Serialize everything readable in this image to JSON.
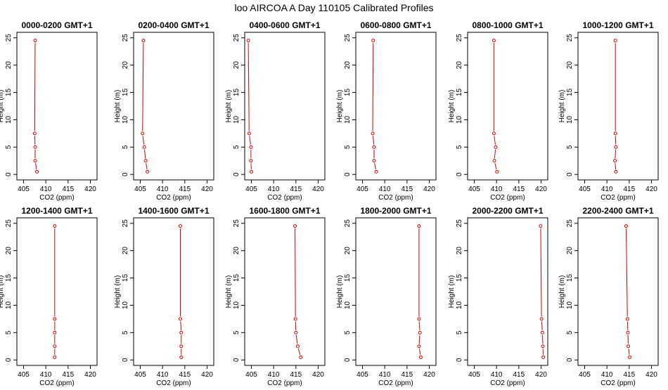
{
  "figure": {
    "title": "loo AIRCOA A  Day 110105  Calibrated Profiles"
  },
  "chart_data": [
    {
      "type": "line",
      "title": "0000-0200 GMT+1",
      "xlabel": "CO2 (ppm)",
      "ylabel": "Height (m)",
      "xlim": [
        403.5,
        421.5
      ],
      "ylim": [
        -1,
        26
      ],
      "xticks": [
        405,
        410,
        415,
        420
      ],
      "yticks": [
        0,
        5,
        10,
        15,
        20,
        25
      ],
      "color": "#d40000",
      "points": [
        {
          "x": 408.0,
          "y": 0.5
        },
        {
          "x": 407.6,
          "y": 2.5
        },
        {
          "x": 407.6,
          "y": 5.0
        },
        {
          "x": 407.5,
          "y": 7.5
        },
        {
          "x": 407.6,
          "y": 24.5
        }
      ]
    },
    {
      "type": "line",
      "title": "0200-0400 GMT+1",
      "xlabel": "CO2 (ppm)",
      "ylabel": "Height (m)",
      "xlim": [
        403.5,
        421.5
      ],
      "ylim": [
        -1,
        26
      ],
      "xticks": [
        405,
        410,
        415,
        420
      ],
      "yticks": [
        0,
        5,
        10,
        15,
        20,
        25
      ],
      "color": "#d40000",
      "points": [
        {
          "x": 406.6,
          "y": 0.5
        },
        {
          "x": 406.2,
          "y": 2.5
        },
        {
          "x": 405.9,
          "y": 5.0
        },
        {
          "x": 405.5,
          "y": 7.5
        },
        {
          "x": 405.7,
          "y": 24.5
        }
      ]
    },
    {
      "type": "line",
      "title": "0400-0600 GMT+1",
      "xlabel": "CO2 (ppm)",
      "ylabel": "Height (m)",
      "xlim": [
        403.5,
        421.5
      ],
      "ylim": [
        -1,
        26
      ],
      "xticks": [
        405,
        410,
        415,
        420
      ],
      "yticks": [
        0,
        5,
        10,
        15,
        20,
        25
      ],
      "color": "#d40000",
      "points": [
        {
          "x": 405.0,
          "y": 0.5
        },
        {
          "x": 404.9,
          "y": 2.5
        },
        {
          "x": 404.9,
          "y": 5.0
        },
        {
          "x": 404.5,
          "y": 7.5
        },
        {
          "x": 404.3,
          "y": 24.5
        }
      ]
    },
    {
      "type": "line",
      "title": "0600-0800 GMT+1",
      "xlabel": "CO2 (ppm)",
      "ylabel": "Height (m)",
      "xlim": [
        403.5,
        421.5
      ],
      "ylim": [
        -1,
        26
      ],
      "xticks": [
        405,
        410,
        415,
        420
      ],
      "yticks": [
        0,
        5,
        10,
        15,
        20,
        25
      ],
      "color": "#d40000",
      "points": [
        {
          "x": 408.1,
          "y": 0.5
        },
        {
          "x": 407.6,
          "y": 2.5
        },
        {
          "x": 407.6,
          "y": 5.0
        },
        {
          "x": 407.3,
          "y": 7.5
        },
        {
          "x": 407.4,
          "y": 24.5
        }
      ]
    },
    {
      "type": "line",
      "title": "0800-1000 GMT+1",
      "xlabel": "CO2 (ppm)",
      "ylabel": "Height (m)",
      "xlim": [
        403.5,
        421.5
      ],
      "ylim": [
        -1,
        26
      ],
      "xticks": [
        405,
        410,
        415,
        420
      ],
      "yticks": [
        0,
        5,
        10,
        15,
        20,
        25
      ],
      "color": "#d40000",
      "points": [
        {
          "x": 410.1,
          "y": 0.5
        },
        {
          "x": 409.5,
          "y": 2.5
        },
        {
          "x": 409.8,
          "y": 5.0
        },
        {
          "x": 409.4,
          "y": 7.5
        },
        {
          "x": 409.4,
          "y": 24.5
        }
      ]
    },
    {
      "type": "line",
      "title": "1000-1200 GMT+1",
      "xlabel": "CO2 (ppm)",
      "ylabel": "Height (m)",
      "xlim": [
        403.5,
        421.5
      ],
      "ylim": [
        -1,
        26
      ],
      "xticks": [
        405,
        410,
        415,
        420
      ],
      "yticks": [
        0,
        5,
        10,
        15,
        20,
        25
      ],
      "color": "#d40000",
      "points": [
        {
          "x": 412.0,
          "y": 0.5
        },
        {
          "x": 411.8,
          "y": 2.5
        },
        {
          "x": 412.0,
          "y": 5.0
        },
        {
          "x": 411.9,
          "y": 7.5
        },
        {
          "x": 411.9,
          "y": 24.5
        }
      ]
    },
    {
      "type": "line",
      "title": "1200-1400 GMT+1",
      "xlabel": "CO2 (ppm)",
      "ylabel": "Height (m)",
      "xlim": [
        403.5,
        421.5
      ],
      "ylim": [
        -1,
        26
      ],
      "xticks": [
        405,
        410,
        415,
        420
      ],
      "yticks": [
        0,
        5,
        10,
        15,
        20,
        25
      ],
      "color": "#d40000",
      "points": [
        {
          "x": 412.0,
          "y": 0.5
        },
        {
          "x": 412.0,
          "y": 2.5
        },
        {
          "x": 412.0,
          "y": 5.0
        },
        {
          "x": 412.0,
          "y": 7.5
        },
        {
          "x": 412.0,
          "y": 24.5
        }
      ]
    },
    {
      "type": "line",
      "title": "1400-1600 GMT+1",
      "xlabel": "CO2 (ppm)",
      "ylabel": "Height (m)",
      "xlim": [
        403.5,
        421.5
      ],
      "ylim": [
        -1,
        26
      ],
      "xticks": [
        405,
        410,
        415,
        420
      ],
      "yticks": [
        0,
        5,
        10,
        15,
        20,
        25
      ],
      "color": "#d40000",
      "points": [
        {
          "x": 414.2,
          "y": 0.5
        },
        {
          "x": 414.2,
          "y": 2.5
        },
        {
          "x": 414.2,
          "y": 5.0
        },
        {
          "x": 414.0,
          "y": 7.5
        },
        {
          "x": 414.0,
          "y": 24.5
        }
      ]
    },
    {
      "type": "line",
      "title": "1600-1800 GMT+1",
      "xlabel": "CO2 (ppm)",
      "ylabel": "Height (m)",
      "xlim": [
        403.5,
        421.5
      ],
      "ylim": [
        -1,
        26
      ],
      "xticks": [
        405,
        410,
        415,
        420
      ],
      "yticks": [
        0,
        5,
        10,
        15,
        20,
        25
      ],
      "color": "#d40000",
      "points": [
        {
          "x": 416.1,
          "y": 0.5
        },
        {
          "x": 415.4,
          "y": 2.5
        },
        {
          "x": 415.0,
          "y": 5.0
        },
        {
          "x": 414.9,
          "y": 7.5
        },
        {
          "x": 414.8,
          "y": 24.5
        }
      ]
    },
    {
      "type": "line",
      "title": "1800-2000 GMT+1",
      "xlabel": "CO2 (ppm)",
      "ylabel": "Height (m)",
      "xlim": [
        403.5,
        421.5
      ],
      "ylim": [
        -1,
        26
      ],
      "xticks": [
        405,
        410,
        415,
        420
      ],
      "yticks": [
        0,
        5,
        10,
        15,
        20,
        25
      ],
      "color": "#d40000",
      "points": [
        {
          "x": 418.1,
          "y": 0.5
        },
        {
          "x": 417.7,
          "y": 2.5
        },
        {
          "x": 417.9,
          "y": 5.0
        },
        {
          "x": 417.7,
          "y": 7.5
        },
        {
          "x": 417.7,
          "y": 24.5
        }
      ]
    },
    {
      "type": "line",
      "title": "2000-2200 GMT+1",
      "xlabel": "CO2 (ppm)",
      "ylabel": "Height (m)",
      "xlim": [
        403.5,
        421.5
      ],
      "ylim": [
        -1,
        26
      ],
      "xticks": [
        405,
        410,
        415,
        420
      ],
      "yticks": [
        0,
        5,
        10,
        15,
        20,
        25
      ],
      "color": "#d40000",
      "points": [
        {
          "x": 420.5,
          "y": 0.5
        },
        {
          "x": 420.4,
          "y": 2.5
        },
        {
          "x": 420.3,
          "y": 5.0
        },
        {
          "x": 420.1,
          "y": 7.5
        },
        {
          "x": 419.9,
          "y": 24.5
        }
      ]
    },
    {
      "type": "line",
      "title": "2200-2400 GMT+1",
      "xlabel": "CO2 (ppm)",
      "ylabel": "Height (m)",
      "xlim": [
        403.5,
        421.5
      ],
      "ylim": [
        -1,
        26
      ],
      "xticks": [
        405,
        410,
        415,
        420
      ],
      "yticks": [
        0,
        5,
        10,
        15,
        20,
        25
      ],
      "color": "#d40000",
      "points": [
        {
          "x": 415.1,
          "y": 0.5
        },
        {
          "x": 414.8,
          "y": 2.5
        },
        {
          "x": 414.7,
          "y": 5.0
        },
        {
          "x": 414.6,
          "y": 7.5
        },
        {
          "x": 414.3,
          "y": 24.5
        }
      ]
    }
  ]
}
